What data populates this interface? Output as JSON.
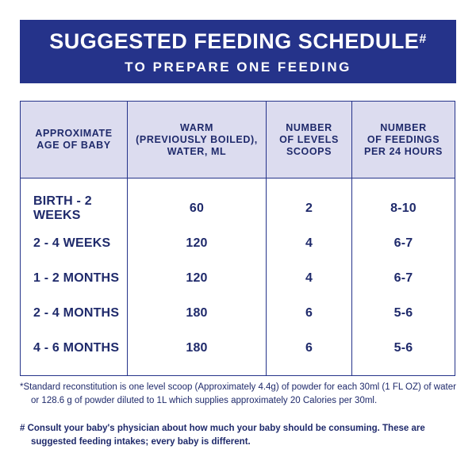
{
  "header": {
    "title": "SUGGESTED FEEDING SCHEDULE",
    "title_mark": "#",
    "subtitle": "TO PREPARE ONE FEEDING"
  },
  "table": {
    "columns": [
      [
        "APPROXIMATE",
        "AGE OF BABY"
      ],
      [
        "WARM",
        "(PREVIOUSLY BOILED),",
        "WATER, ML"
      ],
      [
        "NUMBER",
        "OF LEVELS",
        "SCOOPS"
      ],
      [
        "NUMBER",
        "OF FEEDINGS",
        "PER 24 HOURS"
      ]
    ],
    "rows": [
      {
        "age": "BIRTH - 2 WEEKS",
        "water": "60",
        "scoops": "2",
        "feedings": "8-10"
      },
      {
        "age": "2 - 4 WEEKS",
        "water": "120",
        "scoops": "4",
        "feedings": "6-7"
      },
      {
        "age": "1 - 2 MONTHS",
        "water": "120",
        "scoops": "4",
        "feedings": "6-7"
      },
      {
        "age": "2 - 4 MONTHS",
        "water": "180",
        "scoops": "6",
        "feedings": "5-6"
      },
      {
        "age": "4 - 6 MONTHS",
        "water": "180",
        "scoops": "6",
        "feedings": "5-6"
      }
    ]
  },
  "notes": {
    "standard": "*Standard reconstitution is one level scoop (Approximately 4.4g) of powder for each 30ml (1 FL OZ) of water or 128.6 g of powder diluted to 1L which supplies approximately 20 Calories per 30ml.",
    "consult": "# Consult your baby's physician about how much your baby should be consuming. These are suggested feeding intakes; every baby is different."
  },
  "colors": {
    "banner": "#25338a",
    "header_fill": "#dcdcef",
    "text": "#1f2a6b"
  }
}
